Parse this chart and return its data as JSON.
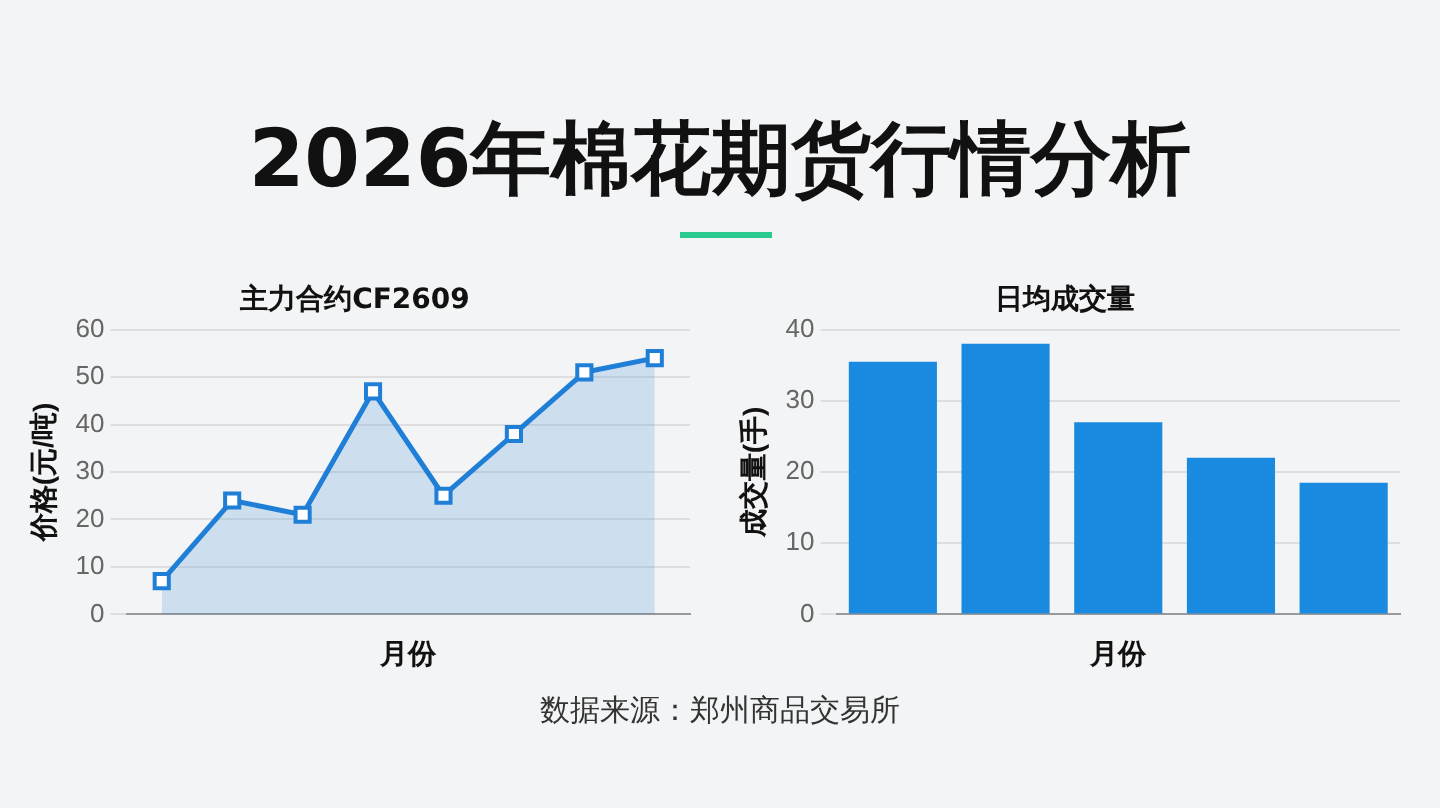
{
  "chart_data": [
    {
      "type": "area",
      "title": "2026年棉花期货行情分析",
      "subtitle": "主力合约CF2609",
      "xlabel": "月份",
      "ylabel": "价格(元/吨)",
      "categories": [
        null,
        null,
        null,
        null,
        null,
        null,
        null,
        null
      ],
      "series": [
        {
          "color": "#1f7fd6",
          "values": [
            7,
            24,
            21,
            47,
            25,
            38,
            51,
            54
          ]
        }
      ],
      "ylim": [
        0,
        60
      ],
      "yticks": [
        0,
        10,
        20,
        30,
        40,
        50,
        60
      ],
      "grid": "y",
      "legend": false,
      "marker": "square",
      "tick_labels": "y",
      "annotations": [
        "数据来源：郑州商品交易所"
      ]
    },
    {
      "type": "bar",
      "title": "日均成交量",
      "xlabel": "月份",
      "ylabel": "成交量(手)",
      "categories": [
        null,
        null,
        null,
        null,
        null
      ],
      "series": [
        {
          "color": "#1a8ae0",
          "values": [
            35.5,
            38,
            27,
            22,
            18.5
          ]
        }
      ],
      "ylim": [
        0,
        40
      ],
      "yticks": [
        0,
        10,
        20,
        30,
        40
      ],
      "grid": "y",
      "legend": false,
      "tick_labels": "y"
    }
  ]
}
